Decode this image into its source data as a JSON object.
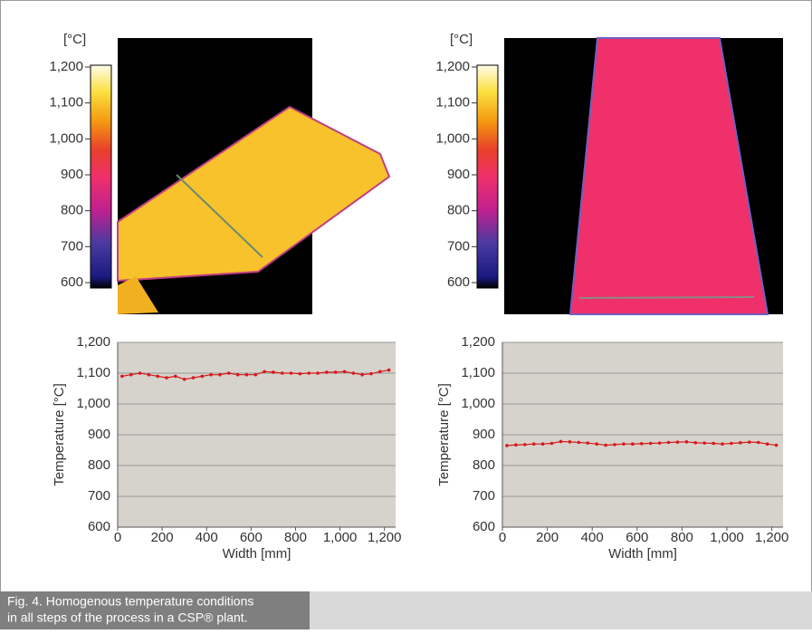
{
  "chart_data": [
    {
      "type": "line",
      "xlabel": "Width [mm]",
      "ylabel": "Temperature [°C]",
      "x": [
        20,
        60,
        100,
        140,
        180,
        220,
        260,
        300,
        340,
        380,
        420,
        460,
        500,
        540,
        580,
        620,
        660,
        700,
        740,
        780,
        820,
        860,
        900,
        940,
        980,
        1020,
        1060,
        1100,
        1140,
        1180,
        1220
      ],
      "series": [
        {
          "color": "#d7191c",
          "values": [
            1090,
            1095,
            1100,
            1095,
            1090,
            1085,
            1090,
            1080,
            1085,
            1090,
            1095,
            1095,
            1100,
            1095,
            1095,
            1095,
            1105,
            1103,
            1100,
            1100,
            1098,
            1100,
            1100,
            1103,
            1103,
            1105,
            1100,
            1095,
            1098,
            1105,
            1110
          ]
        }
      ],
      "xlim": [
        0,
        1250
      ],
      "ylim": [
        600,
        1200
      ],
      "xticks": [
        0,
        200,
        400,
        600,
        800,
        {
          "value": 1000,
          "label": "1,000"
        },
        {
          "value": 1200,
          "label": "1,200"
        }
      ],
      "yticks": [
        600,
        700,
        800,
        900,
        {
          "value": 1000,
          "label": "1,000"
        },
        {
          "value": 1100,
          "label": "1,100"
        },
        {
          "value": 1200,
          "label": "1,200"
        }
      ],
      "grid": true,
      "plot_background": "#d6d3cc"
    },
    {
      "type": "line",
      "xlabel": "Width [mm]",
      "ylabel": "Temperature [°C]",
      "x": [
        20,
        60,
        100,
        140,
        180,
        220,
        260,
        300,
        340,
        380,
        420,
        460,
        500,
        540,
        580,
        620,
        660,
        700,
        740,
        780,
        820,
        860,
        900,
        940,
        980,
        1020,
        1060,
        1100,
        1140,
        1180,
        1220
      ],
      "series": [
        {
          "color": "#d7191c",
          "values": [
            865,
            867,
            868,
            870,
            870,
            872,
            878,
            877,
            875,
            873,
            870,
            866,
            868,
            870,
            870,
            871,
            872,
            873,
            875,
            876,
            877,
            874,
            873,
            872,
            870,
            872,
            874,
            876,
            875,
            870,
            866
          ]
        }
      ],
      "xlim": [
        0,
        1250
      ],
      "ylim": [
        600,
        1200
      ],
      "xticks": [
        0,
        200,
        400,
        600,
        800,
        {
          "value": 1000,
          "label": "1,000"
        },
        {
          "value": 1200,
          "label": "1,200"
        }
      ],
      "yticks": [
        600,
        700,
        800,
        900,
        {
          "value": 1000,
          "label": "1,000"
        },
        {
          "value": 1100,
          "label": "1,100"
        },
        {
          "value": 1200,
          "label": "1,200"
        }
      ],
      "grid": true,
      "plot_background": "#d6d3cc"
    }
  ],
  "thermal_scales": [
    {
      "unit": "[°C]",
      "ticks": [
        600,
        700,
        800,
        900,
        {
          "value": 1000,
          "label": "1,000"
        },
        {
          "value": 1100,
          "label": "1,100"
        },
        {
          "value": 1200,
          "label": "1,200"
        }
      ]
    },
    {
      "unit": "[°C]",
      "ticks": [
        600,
        700,
        800,
        900,
        {
          "value": 1000,
          "label": "1,000"
        },
        {
          "value": 1100,
          "label": "1,100"
        },
        {
          "value": 1200,
          "label": "1,200"
        }
      ]
    }
  ],
  "caption": {
    "line1": "Fig. 4. Homogenous temperature conditions",
    "line2": "in all steps of the process in a CSP® plant."
  }
}
